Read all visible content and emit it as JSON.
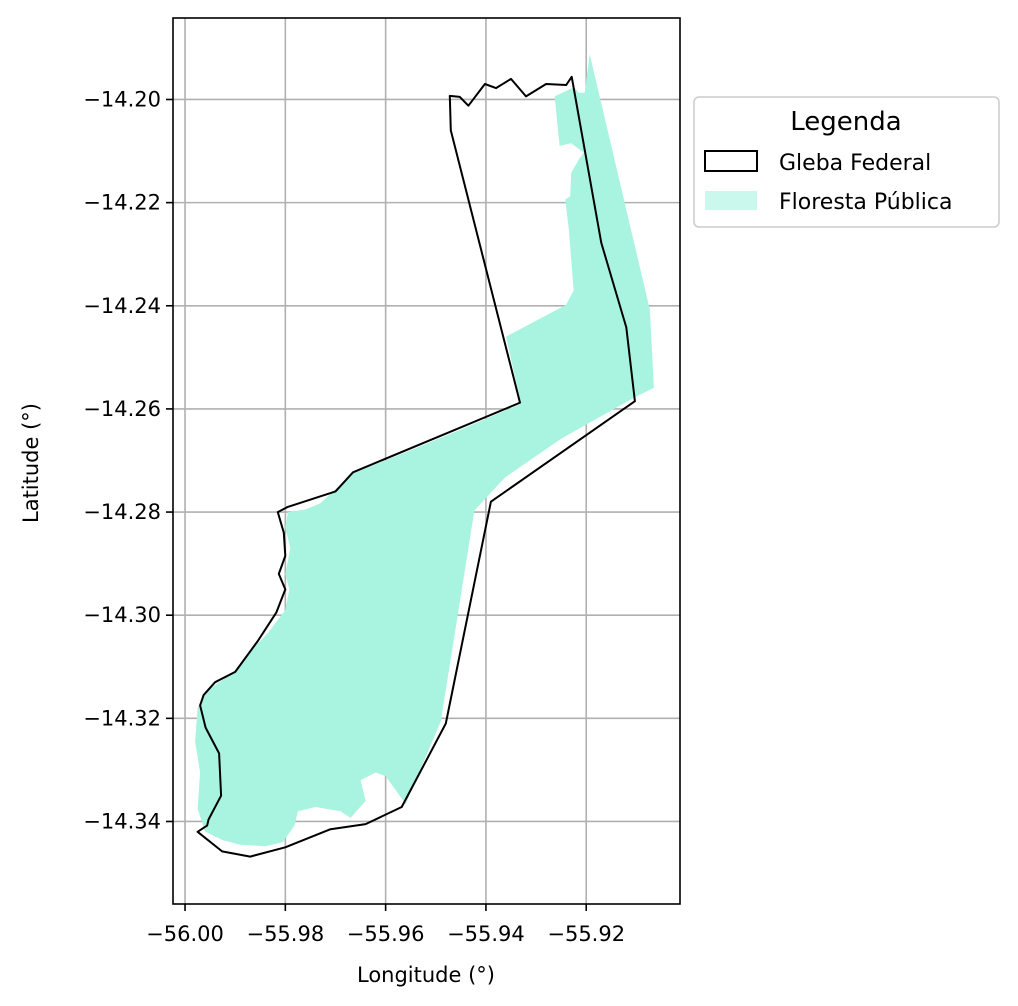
{
  "chart_data": {
    "type": "map",
    "xlabel": "Longitude (°)",
    "ylabel": "Latitude (°)",
    "xlim": [
      -56.0024,
      -55.9013
    ],
    "ylim": [
      -14.356,
      -14.1842
    ],
    "xticks": [
      -56.0,
      -55.98,
      -55.96,
      -55.94,
      -55.92
    ],
    "xtick_labels": [
      "−56.00",
      "−55.98",
      "−55.96",
      "−55.94",
      "−55.92"
    ],
    "yticks": [
      -14.2,
      -14.22,
      -14.24,
      -14.26,
      -14.28,
      -14.3,
      -14.32,
      -14.34
    ],
    "ytick_labels": [
      "−14.20",
      "−14.22",
      "−14.24",
      "−14.26",
      "−14.28",
      "−14.30",
      "−14.32",
      "−14.34"
    ],
    "grid": true,
    "legend": {
      "title": "Legenda",
      "placement": "outside-upper-right",
      "entries": [
        {
          "label": "Gleba Federal",
          "style": "outline",
          "color": "#000000"
        },
        {
          "label": "Floresta Pública",
          "style": "fill",
          "color": "#a8f4e0"
        }
      ]
    },
    "layers": [
      {
        "name": "Floresta Pública",
        "color": "#a8f4e0",
        "polygon": [
          [
            -55.9263,
            -14.1994
          ],
          [
            -55.9224,
            -14.1976
          ],
          [
            -55.9215,
            -14.1987
          ],
          [
            -55.9203,
            -14.1987
          ],
          [
            -55.9193,
            -14.1912
          ],
          [
            -55.9073,
            -14.2408
          ],
          [
            -55.9065,
            -14.2559
          ],
          [
            -55.9108,
            -14.258
          ],
          [
            -55.925,
            -14.2658
          ],
          [
            -55.9362,
            -14.2733
          ],
          [
            -55.9423,
            -14.2797
          ],
          [
            -55.949,
            -14.3206
          ],
          [
            -55.956,
            -14.3366
          ],
          [
            -55.96,
            -14.3312
          ],
          [
            -55.962,
            -14.3305
          ],
          [
            -55.965,
            -14.332
          ],
          [
            -55.964,
            -14.336
          ],
          [
            -55.967,
            -14.3393
          ],
          [
            -55.969,
            -14.338
          ],
          [
            -55.974,
            -14.3372
          ],
          [
            -55.9775,
            -14.338
          ],
          [
            -55.9782,
            -14.3408
          ],
          [
            -55.9805,
            -14.344
          ],
          [
            -55.984,
            -14.3448
          ],
          [
            -55.989,
            -14.3445
          ],
          [
            -55.9925,
            -14.3436
          ],
          [
            -55.996,
            -14.342
          ],
          [
            -55.9975,
            -14.3375
          ],
          [
            -55.997,
            -14.3305
          ],
          [
            -55.998,
            -14.3245
          ],
          [
            -55.9975,
            -14.318
          ],
          [
            -55.996,
            -14.315
          ],
          [
            -55.9935,
            -14.3132
          ],
          [
            -55.99,
            -14.311
          ],
          [
            -55.986,
            -14.306
          ],
          [
            -55.9835,
            -14.3035
          ],
          [
            -55.98,
            -14.299
          ],
          [
            -55.9792,
            -14.295
          ],
          [
            -55.98,
            -14.292
          ],
          [
            -55.979,
            -14.287
          ],
          [
            -55.98,
            -14.283
          ],
          [
            -55.9795,
            -14.28
          ],
          [
            -55.976,
            -14.2795
          ],
          [
            -55.973,
            -14.2783
          ],
          [
            -55.9705,
            -14.276
          ],
          [
            -55.9665,
            -14.2725
          ],
          [
            -55.955,
            -14.268
          ],
          [
            -55.945,
            -14.264
          ],
          [
            -55.933,
            -14.259
          ],
          [
            -55.936,
            -14.246
          ],
          [
            -55.924,
            -14.2398
          ],
          [
            -55.9225,
            -14.237
          ],
          [
            -55.9235,
            -14.225
          ],
          [
            -55.9242,
            -14.2194
          ],
          [
            -55.9232,
            -14.2188
          ],
          [
            -55.923,
            -14.2142
          ],
          [
            -55.9215,
            -14.2117
          ],
          [
            -55.9205,
            -14.2103
          ],
          [
            -55.923,
            -14.2085
          ],
          [
            -55.9253,
            -14.209
          ]
        ]
      },
      {
        "name": "Gleba Federal",
        "color": "#000000",
        "polygon": [
          [
            -55.9472,
            -14.1993
          ],
          [
            -55.9452,
            -14.1995
          ],
          [
            -55.9435,
            -14.2012
          ],
          [
            -55.9402,
            -14.197
          ],
          [
            -55.938,
            -14.1978
          ],
          [
            -55.935,
            -14.196
          ],
          [
            -55.932,
            -14.1994
          ],
          [
            -55.928,
            -14.197
          ],
          [
            -55.924,
            -14.1972
          ],
          [
            -55.9229,
            -14.1956
          ],
          [
            -55.917,
            -14.2278
          ],
          [
            -55.912,
            -14.2442
          ],
          [
            -55.9103,
            -14.2585
          ],
          [
            -55.939,
            -14.278
          ],
          [
            -55.948,
            -14.321
          ],
          [
            -55.9568,
            -14.3372
          ],
          [
            -55.964,
            -14.3405
          ],
          [
            -55.971,
            -14.3415
          ],
          [
            -55.98,
            -14.345
          ],
          [
            -55.987,
            -14.3468
          ],
          [
            -55.9926,
            -14.3458
          ],
          [
            -55.9975,
            -14.342
          ],
          [
            -55.9956,
            -14.3408
          ],
          [
            -55.9953,
            -14.3396
          ],
          [
            -55.9928,
            -14.335
          ],
          [
            -55.9932,
            -14.3268
          ],
          [
            -55.9959,
            -14.3218
          ],
          [
            -55.997,
            -14.3175
          ],
          [
            -55.9963,
            -14.3155
          ],
          [
            -55.994,
            -14.313
          ],
          [
            -55.99,
            -14.311
          ],
          [
            -55.9855,
            -14.305
          ],
          [
            -55.9818,
            -14.2995
          ],
          [
            -55.98,
            -14.295
          ],
          [
            -55.9813,
            -14.292
          ],
          [
            -55.98,
            -14.2885
          ],
          [
            -55.9803,
            -14.284
          ],
          [
            -55.9815,
            -14.28
          ],
          [
            -55.9795,
            -14.279
          ],
          [
            -55.97,
            -14.276
          ],
          [
            -55.9665,
            -14.2723
          ],
          [
            -55.9332,
            -14.2588
          ],
          [
            -55.947,
            -14.206
          ]
        ]
      }
    ]
  }
}
